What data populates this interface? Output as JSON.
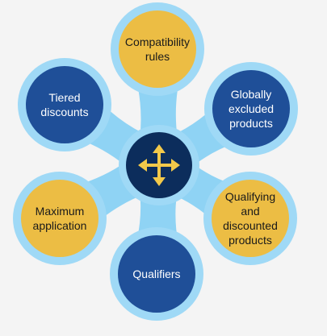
{
  "diagram": {
    "colors": {
      "background": "#f4f4f4",
      "connector": "#8fd3f4",
      "outer_ring": "#9fd9f6",
      "hub": "#0c2d5c",
      "hub_arrows": "#f3c94a",
      "yellow_node": "#ecbd44",
      "blue_node": "#1f4f98",
      "text_dark": "#1a1a1a",
      "text_light": "#ffffff"
    },
    "hub": {
      "icon": "four-way-arrows-icon"
    },
    "nodes": [
      {
        "id": "compatibility-rules",
        "lines": [
          "Compatibility",
          "rules"
        ],
        "fill": "yellow"
      },
      {
        "id": "globally-excluded-products",
        "lines": [
          "Globally",
          "excluded",
          "products"
        ],
        "fill": "blue"
      },
      {
        "id": "qualifying-and-discounted-products",
        "lines": [
          "Qualifying",
          "and",
          "discounted",
          "products"
        ],
        "fill": "yellow"
      },
      {
        "id": "qualifiers",
        "lines": [
          "Qualifiers"
        ],
        "fill": "blue"
      },
      {
        "id": "maximum-application",
        "lines": [
          "Maximum",
          "application"
        ],
        "fill": "yellow"
      },
      {
        "id": "tiered-discounts",
        "lines": [
          "Tiered",
          "discounts"
        ],
        "fill": "blue"
      }
    ]
  }
}
